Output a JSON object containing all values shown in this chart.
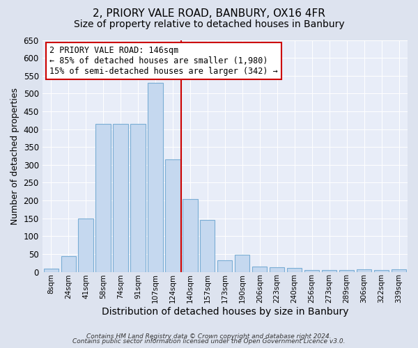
{
  "title": "2, PRIORY VALE ROAD, BANBURY, OX16 4FR",
  "subtitle": "Size of property relative to detached houses in Banbury",
  "xlabel": "Distribution of detached houses by size in Banbury",
  "ylabel": "Number of detached properties",
  "bar_labels": [
    "8sqm",
    "24sqm",
    "41sqm",
    "58sqm",
    "74sqm",
    "91sqm",
    "107sqm",
    "124sqm",
    "140sqm",
    "157sqm",
    "173sqm",
    "190sqm",
    "206sqm",
    "223sqm",
    "240sqm",
    "256sqm",
    "273sqm",
    "289sqm",
    "306sqm",
    "322sqm",
    "339sqm"
  ],
  "bar_values": [
    8,
    44,
    150,
    415,
    415,
    415,
    530,
    315,
    205,
    145,
    33,
    48,
    15,
    12,
    10,
    5,
    5,
    5,
    7,
    5,
    7
  ],
  "bar_color": "#c5d8ef",
  "bar_edge_color": "#7aadd4",
  "vline_color": "#cc0000",
  "vline_pos": 7.5,
  "ylim": [
    0,
    650
  ],
  "yticks": [
    0,
    50,
    100,
    150,
    200,
    250,
    300,
    350,
    400,
    450,
    500,
    550,
    600,
    650
  ],
  "annotation_text": "2 PRIORY VALE ROAD: 146sqm\n← 85% of detached houses are smaller (1,980)\n15% of semi-detached houses are larger (342) →",
  "annotation_box_color": "#ffffff",
  "annotation_box_edge": "#cc0000",
  "bg_color": "#dde3ef",
  "plot_bg_color": "#e8edf8",
  "title_fontsize": 11,
  "subtitle_fontsize": 10,
  "xlabel_fontsize": 10,
  "ylabel_fontsize": 9,
  "footer_line1": "Contains HM Land Registry data © Crown copyright and database right 2024.",
  "footer_line2": "Contains public sector information licensed under the Open Government Licence v3.0."
}
